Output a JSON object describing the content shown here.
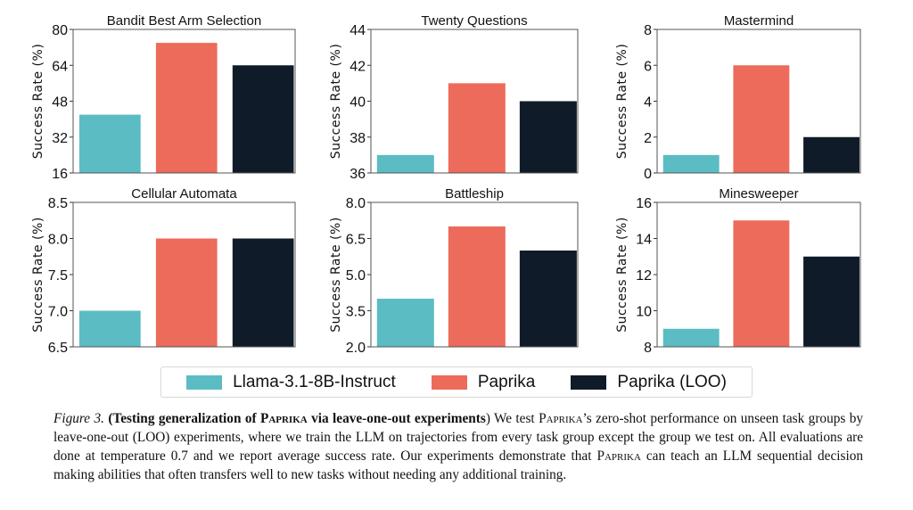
{
  "chart_data": [
    {
      "type": "bar",
      "title": "Bandit Best Arm Selection",
      "ylabel": "Success Rate (%)",
      "ylim": [
        16,
        80
      ],
      "yticks": [
        "16",
        "32",
        "48",
        "64",
        "80"
      ],
      "values": [
        42,
        74,
        64
      ]
    },
    {
      "type": "bar",
      "title": "Twenty Questions",
      "ylabel": "Success Rate (%)",
      "ylim": [
        36,
        44
      ],
      "yticks": [
        "36",
        "38",
        "40",
        "42",
        "44"
      ],
      "values": [
        37,
        41,
        40
      ]
    },
    {
      "type": "bar",
      "title": "Mastermind",
      "ylabel": "Success Rate (%)",
      "ylim": [
        0,
        8
      ],
      "yticks": [
        "0",
        "2",
        "4",
        "6",
        "8"
      ],
      "values": [
        1,
        6,
        2
      ]
    },
    {
      "type": "bar",
      "title": "Cellular Automata",
      "ylabel": "Success Rate (%)",
      "ylim": [
        6.5,
        8.5
      ],
      "yticks": [
        "6.5",
        "7.0",
        "7.5",
        "8.0",
        "8.5"
      ],
      "values": [
        7,
        8,
        8
      ]
    },
    {
      "type": "bar",
      "title": "Battleship",
      "ylabel": "Success Rate (%)",
      "ylim": [
        2,
        8
      ],
      "yticks": [
        "2.0",
        "3.5",
        "5.0",
        "6.5",
        "8.0"
      ],
      "values": [
        4,
        7,
        6
      ]
    },
    {
      "type": "bar",
      "title": "Minesweeper",
      "ylabel": "Success Rate (%)",
      "ylim": [
        8,
        16
      ],
      "yticks": [
        "8",
        "10",
        "12",
        "14",
        "16"
      ],
      "values": [
        9,
        15,
        13
      ]
    }
  ],
  "series": [
    {
      "name": "Llama-3.1-8B-Instruct",
      "color": "#5bbcc3"
    },
    {
      "name": "Paprika",
      "color": "#ec6b5a"
    },
    {
      "name": "Paprika (LOO)",
      "color": "#0f1b29"
    }
  ],
  "legend_placement": "bottom-center",
  "caption": {
    "label": "Figure 3.",
    "bold_title_a": "(Testing generalization of ",
    "bold_title_b": "Paprika",
    "bold_title_c": " via leave-one-out experiments",
    "close_paren": ")",
    "text_a": " We test ",
    "text_b": "Paprika",
    "text_c": "’s zero-shot performance on unseen task groups by leave-one-out (LOO) experiments, where we train the LLM on trajectories from every task group except the group we test on. All evaluations are done at temperature 0.7 and we report average success rate. Our experiments demonstrate that ",
    "text_d": "Paprika",
    "text_e": " can teach an LLM sequential decision making abilities that often transfers well to new tasks without needing any additional training."
  }
}
